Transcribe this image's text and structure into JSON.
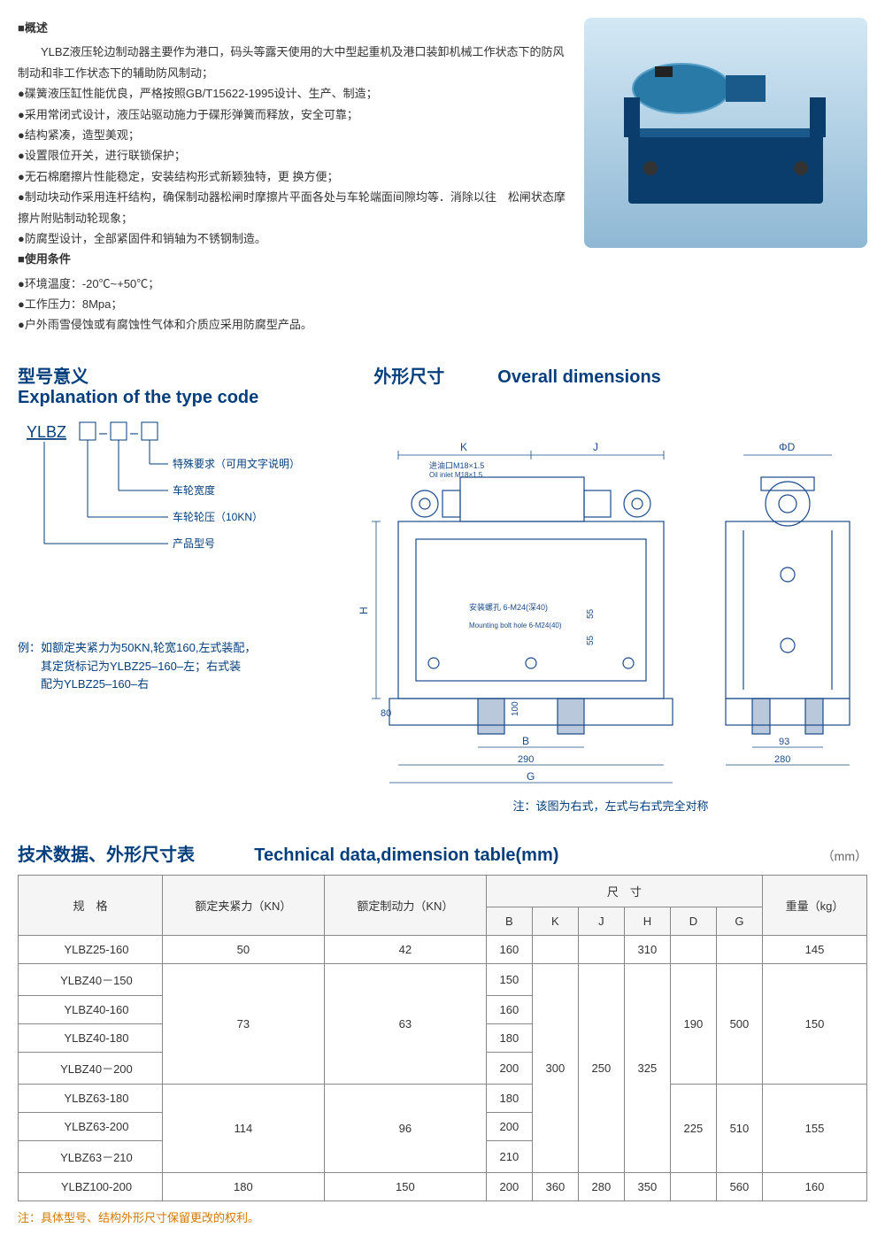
{
  "overview": {
    "title": "■概述",
    "intro": "　　YLBZ液压轮边制动器主要作为港口，码头等露天使用的大中型起重机及港口装卸机械工作状态下的防风制动和非工作状态下的辅助防风制动；",
    "bullets": [
      "●碟簧液压缸性能优良，严格按照GB/T15622-1995设计、生产、制造；",
      "●采用常闭式设计，液压站驱动施力于碟形弹簧而释放，安全可靠；",
      "●结构紧凑，造型美观；",
      "●设置限位开关，进行联锁保护；",
      "●无石棉磨擦片性能稳定，安装结构形式新颖独特，更 换方便；",
      "●制动块动作采用连杆结构，确保制动器松闸时摩擦片平面各处与车轮端面间隙均等．消除以往　松闸状态摩擦片附贴制动轮现象；",
      "●防腐型设计，全部紧固件和销轴为不锈钢制造。"
    ],
    "conditions_title": "■使用条件",
    "conditions": [
      "●环境温度：-20℃~+50℃；",
      "●工作压力：8Mpa；",
      "●户外雨雪侵蚀或有腐蚀性气体和介质应采用防腐型产品。"
    ]
  },
  "type_code": {
    "title_cn": "型号意义",
    "title_en": "Explanation of the type code",
    "prefix": "YLBZ",
    "legend": [
      "特殊要求（可用文字说明）",
      "车轮宽度",
      "车轮轮压（10KN）",
      "产品型号"
    ],
    "example": "例：如额定夹紧力为50KN,轮宽160,左式装配，\n　　其定货标记为YLBZ25–160–左；右式装\n　　配为YLBZ25–160–右"
  },
  "dimensions": {
    "title_cn": "外形尺寸",
    "title_en": "Overall dimensions",
    "labels": {
      "oil_inlet_cn": "进油口M18×1.5",
      "oil_inlet_en": "Oil inlet M18×1.5",
      "mount_hole_cn": "安装螺孔\n6-M24(深40)",
      "mount_hole_en": "Mounting bolt hole\n6-M24(40)",
      "K": "K",
      "J": "J",
      "H": "H",
      "B": "B",
      "G": "G",
      "D": "ΦD",
      "d80": "80",
      "d100": "100",
      "d55a": "55",
      "d55b": "55",
      "d290": "290",
      "d93": "93",
      "d280": "280"
    },
    "note": "注：该图为右式，左式与右式完全对称"
  },
  "table": {
    "title_cn": "技术数据、外形尺寸表",
    "title_en": "Technical data,dimension table(mm)",
    "unit": "（mm）",
    "headers": {
      "spec": "规　格",
      "clamp": "额定夹紧力（KN）",
      "brake": "额定制动力（KN）",
      "dims": "尺　寸",
      "weight": "重量（kg）",
      "B": "B",
      "K": "K",
      "J": "J",
      "H": "H",
      "D": "D",
      "G": "G"
    },
    "rows": [
      {
        "model": "YLBZ25-160",
        "clamp": "50",
        "brake": "42",
        "B": "160",
        "K": "",
        "J": "",
        "H": "310",
        "D": "",
        "G": "",
        "weight": "145"
      },
      {
        "model": "YLBZ40－150",
        "B": "150"
      },
      {
        "model": "YLBZ40-160",
        "B": "160"
      },
      {
        "model": "YLBZ40-180",
        "B": "180"
      },
      {
        "model": "YLBZ40－200",
        "B": "200"
      },
      {
        "model": "YLBZ63-180",
        "B": "180"
      },
      {
        "model": "YLBZ63-200",
        "B": "200"
      },
      {
        "model": "YLBZ63－210",
        "B": "210"
      },
      {
        "model": "YLBZ100-200",
        "clamp": "180",
        "brake": "150",
        "B": "200",
        "K": "360",
        "J": "280",
        "H": "350",
        "D": "",
        "G": "560",
        "weight": "160"
      }
    ],
    "groups": {
      "g40_clamp": "73",
      "g40_brake": "63",
      "g63_clamp": "114",
      "g63_brake": "96",
      "K_shared": "300",
      "J_shared": "250",
      "H_shared": "325",
      "D_40": "190",
      "G_40": "500",
      "W_40": "150",
      "D_63": "225",
      "G_63": "510",
      "W_63": "155"
    },
    "footnote": "注：具体型号、结构外形尺寸保留更改的权利。"
  },
  "colors": {
    "heading": "#043e7c",
    "diagram_line": "#1a4a8a",
    "product_body": "#0a3d6b",
    "product_cyl": "#2a7aa8",
    "footnote": "#d47800"
  }
}
